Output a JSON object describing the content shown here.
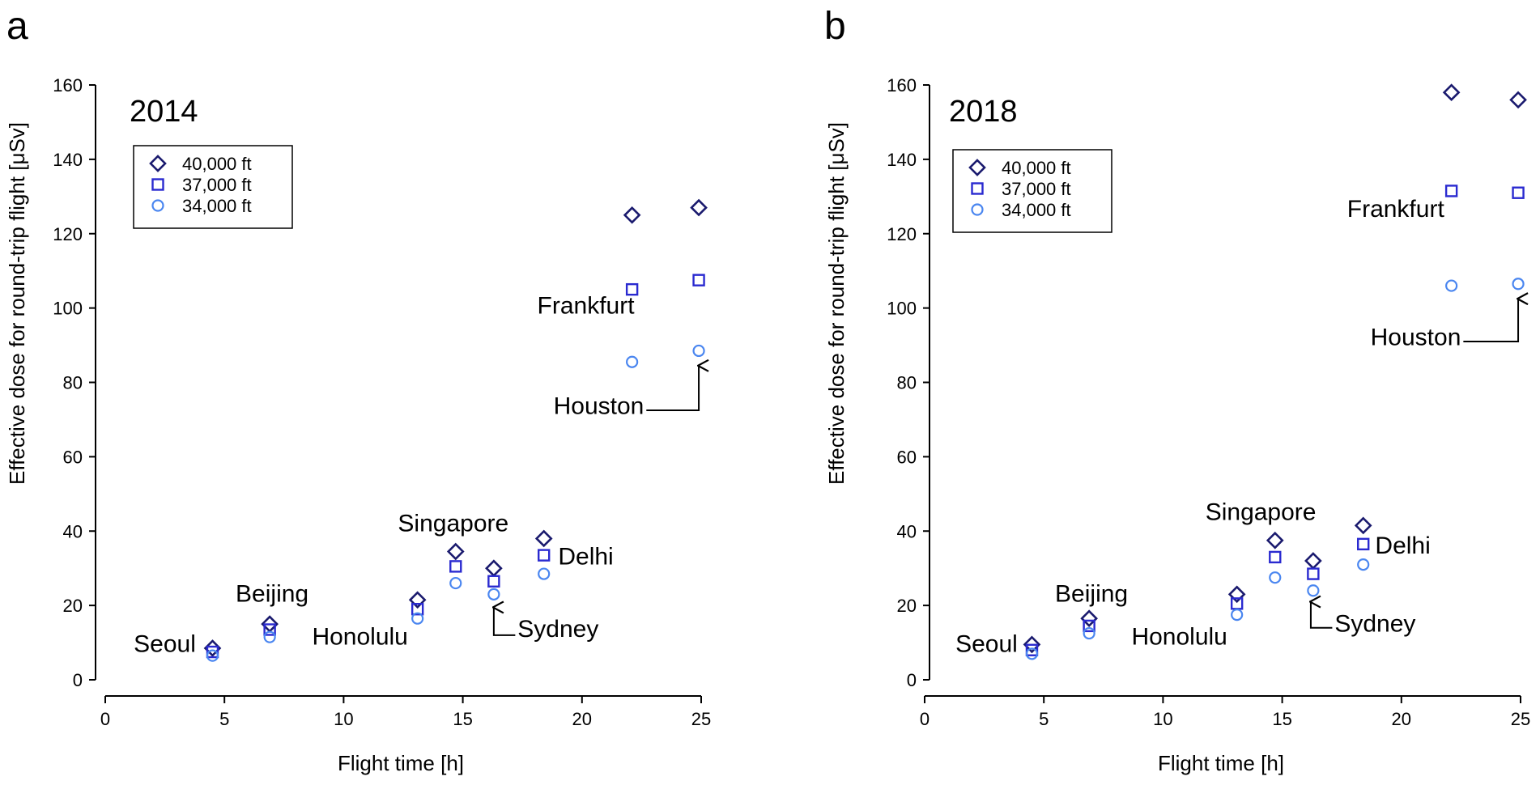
{
  "colors": {
    "ft40000": "#1a1a6e",
    "ft37000": "#2a2ad0",
    "ft34000": "#4a86f0",
    "axis": "#000000",
    "annotation": "#000000"
  },
  "chart_data": [
    {
      "type": "scatter",
      "panel_label": "a",
      "year": "2014",
      "xlabel": "Flight time [h]",
      "ylabel": "Effective dose for round-trip flight [μSv]",
      "xlim": [
        0,
        25
      ],
      "ylim": [
        0,
        160
      ],
      "xticks": [
        0,
        5,
        10,
        15,
        20,
        25
      ],
      "yticks": [
        0,
        20,
        40,
        60,
        80,
        100,
        120,
        140,
        160
      ],
      "legend_position": "top-left",
      "series": [
        {
          "name": "40,000 ft",
          "marker": "diamond",
          "color": "#1a1a6e",
          "points": [
            [
              4.5,
              8.5
            ],
            [
              6.9,
              15.0
            ],
            [
              13.1,
              21.5
            ],
            [
              14.7,
              34.5
            ],
            [
              16.3,
              30.0
            ],
            [
              18.4,
              38.0
            ],
            [
              22.1,
              125.0
            ],
            [
              24.9,
              127.0
            ]
          ]
        },
        {
          "name": "37,000 ft",
          "marker": "square",
          "color": "#2a2ad0",
          "points": [
            [
              4.5,
              7.5
            ],
            [
              6.9,
              13.5
            ],
            [
              13.1,
              19.0
            ],
            [
              14.7,
              30.5
            ],
            [
              16.3,
              26.5
            ],
            [
              18.4,
              33.5
            ],
            [
              22.1,
              105.0
            ],
            [
              24.9,
              107.5
            ]
          ]
        },
        {
          "name": "34,000 ft",
          "marker": "circle",
          "color": "#4a86f0",
          "points": [
            [
              4.5,
              6.5
            ],
            [
              6.9,
              11.5
            ],
            [
              13.1,
              16.5
            ],
            [
              14.7,
              26.0
            ],
            [
              16.3,
              23.0
            ],
            [
              18.4,
              28.5
            ],
            [
              22.1,
              85.5
            ],
            [
              24.9,
              88.5
            ]
          ]
        }
      ],
      "annotations": [
        {
          "text": "Seoul",
          "x": 3.8,
          "y": 7.5,
          "anchor": "end",
          "arrow": false
        },
        {
          "text": "Beijing",
          "x": 7.0,
          "y": 21.0,
          "anchor": "middle",
          "arrow": false
        },
        {
          "text": "Honolulu",
          "x": 12.7,
          "y": 9.5,
          "anchor": "end",
          "arrow": false
        },
        {
          "text": "Singapore",
          "x": 14.6,
          "y": 40.0,
          "anchor": "middle",
          "arrow": false
        },
        {
          "text": "Delhi",
          "x": 19.0,
          "y": 31.0,
          "anchor": "start",
          "arrow": false
        },
        {
          "text": "Sydney",
          "x": 17.3,
          "y": 11.5,
          "anchor": "start",
          "arrow": true,
          "arrow_path": [
            [
              17.2,
              12.0
            ],
            [
              16.3,
              12.0
            ],
            [
              16.3,
              19.5
            ]
          ]
        },
        {
          "text": "Frankfurt",
          "x": 22.2,
          "y": 98.5,
          "anchor": "end",
          "arrow": false
        },
        {
          "text": "Houston",
          "x": 22.6,
          "y": 71.5,
          "anchor": "end",
          "arrow": true,
          "arrow_path": [
            [
              22.7,
              72.5
            ],
            [
              24.9,
              72.5
            ],
            [
              24.9,
              84.5
            ]
          ]
        }
      ]
    },
    {
      "type": "scatter",
      "panel_label": "b",
      "year": "2018",
      "xlabel": "Flight time [h]",
      "ylabel": "Effective dose for round-trip flight [μSv]",
      "xlim": [
        0,
        25
      ],
      "ylim": [
        0,
        160
      ],
      "xticks": [
        0,
        5,
        10,
        15,
        20,
        25
      ],
      "yticks": [
        0,
        20,
        40,
        60,
        80,
        100,
        120,
        140,
        160
      ],
      "legend_position": "top-left",
      "series": [
        {
          "name": "40,000 ft",
          "marker": "diamond",
          "color": "#1a1a6e",
          "points": [
            [
              4.5,
              9.5
            ],
            [
              6.9,
              16.5
            ],
            [
              13.1,
              23.0
            ],
            [
              14.7,
              37.5
            ],
            [
              16.3,
              32.0
            ],
            [
              18.4,
              41.5
            ],
            [
              22.1,
              158.0
            ],
            [
              24.9,
              156.0
            ]
          ]
        },
        {
          "name": "37,000 ft",
          "marker": "square",
          "color": "#2a2ad0",
          "points": [
            [
              4.5,
              8.0
            ],
            [
              6.9,
              14.5
            ],
            [
              13.1,
              20.5
            ],
            [
              14.7,
              33.0
            ],
            [
              16.3,
              28.5
            ],
            [
              18.4,
              36.5
            ],
            [
              22.1,
              131.5
            ],
            [
              24.9,
              131.0
            ]
          ]
        },
        {
          "name": "34,000 ft",
          "marker": "circle",
          "color": "#4a86f0",
          "points": [
            [
              4.5,
              7.0
            ],
            [
              6.9,
              12.5
            ],
            [
              13.1,
              17.5
            ],
            [
              14.7,
              27.5
            ],
            [
              16.3,
              24.0
            ],
            [
              18.4,
              31.0
            ],
            [
              22.1,
              106.0
            ],
            [
              24.9,
              106.5
            ]
          ]
        }
      ],
      "annotations": [
        {
          "text": "Seoul",
          "x": 3.9,
          "y": 7.5,
          "anchor": "end",
          "arrow": false
        },
        {
          "text": "Beijing",
          "x": 7.0,
          "y": 21.0,
          "anchor": "middle",
          "arrow": false
        },
        {
          "text": "Honolulu",
          "x": 12.7,
          "y": 9.5,
          "anchor": "end",
          "arrow": false
        },
        {
          "text": "Singapore",
          "x": 14.1,
          "y": 43.0,
          "anchor": "middle",
          "arrow": false
        },
        {
          "text": "Delhi",
          "x": 18.9,
          "y": 34.0,
          "anchor": "start",
          "arrow": false
        },
        {
          "text": "Sydney",
          "x": 17.2,
          "y": 13.0,
          "anchor": "start",
          "arrow": true,
          "arrow_path": [
            [
              17.1,
              14.0
            ],
            [
              16.2,
              14.0
            ],
            [
              16.2,
              21.0
            ]
          ]
        },
        {
          "text": "Frankfurt",
          "x": 21.8,
          "y": 124.5,
          "anchor": "end",
          "arrow": false
        },
        {
          "text": "Houston",
          "x": 22.5,
          "y": 90.0,
          "anchor": "end",
          "arrow": true,
          "arrow_path": [
            [
              22.6,
              91.0
            ],
            [
              24.9,
              91.0
            ],
            [
              24.9,
              102.5
            ]
          ]
        }
      ]
    }
  ]
}
